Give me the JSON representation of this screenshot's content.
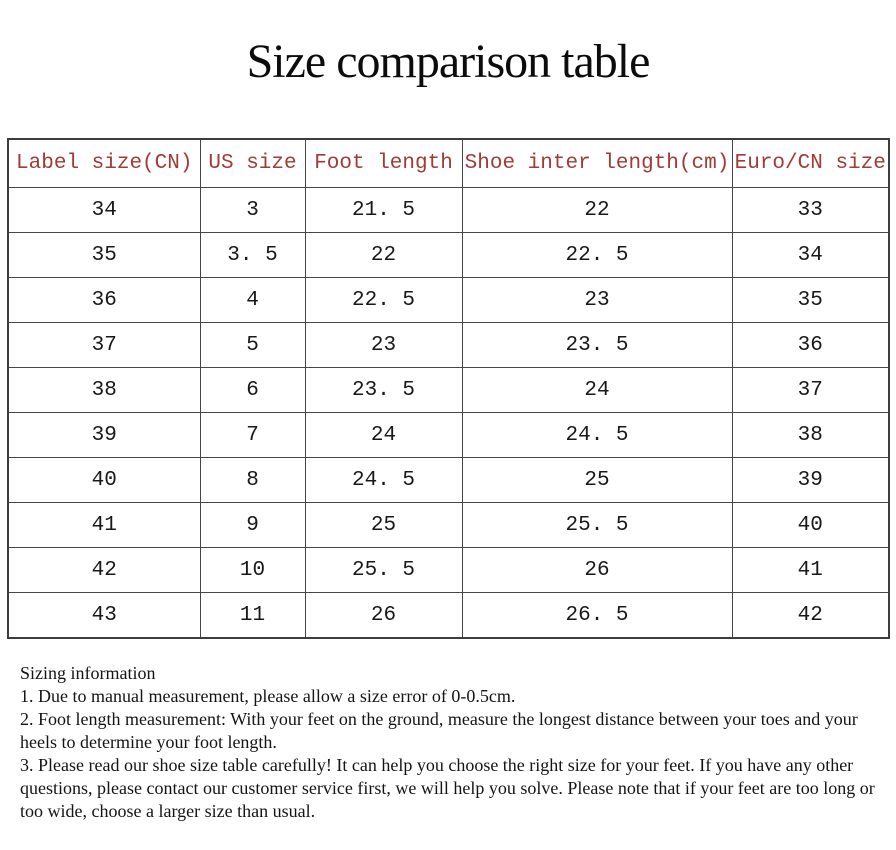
{
  "title": "Size comparison table",
  "table": {
    "headers": [
      "Label size(CN)",
      "US size",
      "Foot length",
      "Shoe inter length(cm)",
      "Euro/CN size"
    ],
    "rows": [
      [
        "34",
        "3",
        "21. 5",
        "22",
        "33"
      ],
      [
        "35",
        "3. 5",
        "22",
        "22. 5",
        "34"
      ],
      [
        "36",
        "4",
        "22. 5",
        "23",
        "35"
      ],
      [
        "37",
        "5",
        "23",
        "23. 5",
        "36"
      ],
      [
        "38",
        "6",
        "23. 5",
        "24",
        "37"
      ],
      [
        "39",
        "7",
        "24",
        "24. 5",
        "38"
      ],
      [
        "40",
        "8",
        "24. 5",
        "25",
        "39"
      ],
      [
        "41",
        "9",
        "25",
        "25. 5",
        "40"
      ],
      [
        "42",
        "10",
        "25. 5",
        "26",
        "41"
      ],
      [
        "43",
        "11",
        "26",
        "26. 5",
        "42"
      ]
    ]
  },
  "notes": {
    "heading": "Sizing information",
    "items": [
      "1. Due to manual measurement, please allow a size error of 0-0.5cm.",
      "2. Foot length measurement: With your feet on the ground, measure the longest distance between your toes and your heels to determine your foot length.",
      "3. Please read our shoe size table carefully! It can help you choose the right size for your feet. If you have any other questions, please contact our customer service first, we will help you solve. Please note that if your feet are too long or too wide, choose a larger size than usual."
    ]
  },
  "colors": {
    "header_text": "#a23a36",
    "border": "#3d3d3d",
    "body_text": "#141414",
    "background": "#ffffff"
  }
}
